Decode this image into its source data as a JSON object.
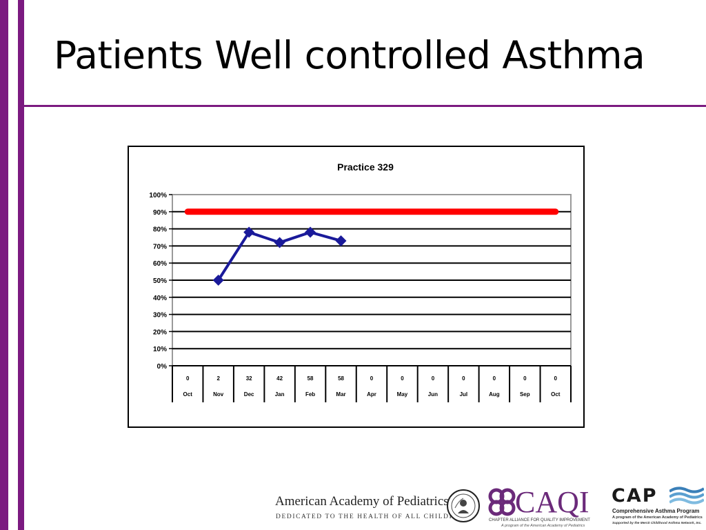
{
  "slide": {
    "title": "Patients Well controlled Asthma"
  },
  "colors": {
    "accent_purple": "#7b1a80",
    "series_line": "#1a1a9a",
    "target_line": "#ff0000"
  },
  "chart_data": {
    "type": "line",
    "title": "Practice 329",
    "xlabel": "",
    "ylabel": "",
    "ylim": [
      0,
      100
    ],
    "y_ticks": [
      "0%",
      "10%",
      "20%",
      "30%",
      "40%",
      "50%",
      "60%",
      "70%",
      "80%",
      "90%",
      "100%"
    ],
    "grid": true,
    "legend": "none",
    "categories": [
      "Oct",
      "Nov",
      "Dec",
      "Jan",
      "Feb",
      "Mar",
      "Apr",
      "May",
      "Jun",
      "Jul",
      "Aug",
      "Sep",
      "Oct"
    ],
    "table_counts": [
      "0",
      "2",
      "32",
      "42",
      "58",
      "58",
      "0",
      "0",
      "0",
      "0",
      "0",
      "0",
      "0"
    ],
    "series": [
      {
        "values": [
          null,
          50,
          78,
          72,
          78,
          73,
          null,
          null,
          null,
          null,
          null,
          null,
          null
        ],
        "color": "#1a1a9a",
        "marker": "diamond"
      },
      {
        "values": [
          90,
          90,
          90,
          90,
          90,
          90,
          90,
          90,
          90,
          90,
          90,
          90,
          90
        ],
        "color": "#ff0000",
        "marker": "none"
      }
    ]
  },
  "logos": {
    "aap_name": "American Academy of Pediatrics",
    "aap_tagline": "DEDICATED TO THE HEALTH OF ALL CHILDREN™",
    "aap_seal": "aap-seal-icon",
    "caqi_word": "CAQI",
    "caqi_line1": "CHAPTER ALLIANCE FOR QUALITY IMPROVEMENT",
    "caqi_line2": "A program of the American Academy of Pediatrics",
    "cap_word": "CAP",
    "cap_line1": "Comprehensive Asthma Program",
    "cap_line2": "A program of the American Academy of Pediatrics",
    "cap_line3": "Supported by the Merck Childhood Asthma Network, Inc."
  }
}
